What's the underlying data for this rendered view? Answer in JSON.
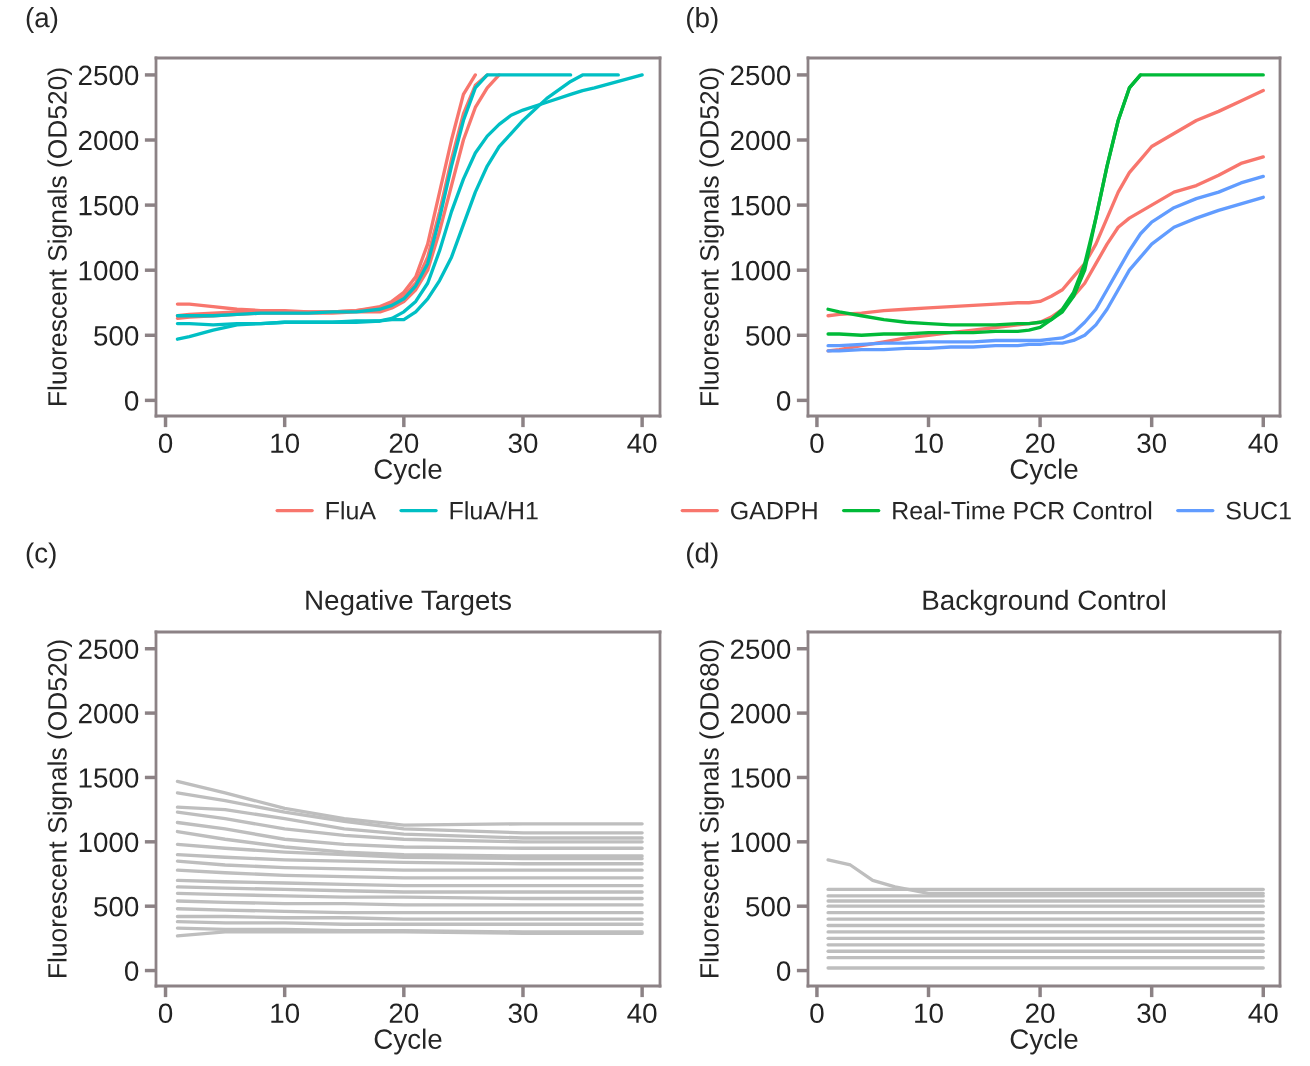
{
  "chart_data": [
    {
      "type": "line",
      "annotations": [
        "(a)"
      ],
      "xlabel": "Cycle",
      "ylabel": "Fluorescent Signals (OD520)",
      "xlim": [
        -0.8,
        41.5
      ],
      "ylim": [
        -120,
        2630
      ],
      "xticks": [
        0,
        10,
        20,
        30,
        40
      ],
      "yticks": [
        0,
        500,
        1000,
        1500,
        2000,
        2500
      ],
      "grid": false,
      "legend": "bottom",
      "x": [
        1,
        2,
        4,
        6,
        8,
        10,
        12,
        14,
        16,
        18,
        19,
        20,
        21,
        22,
        23,
        24,
        25,
        26,
        27,
        28,
        29,
        30,
        32,
        34,
        35,
        36,
        38,
        40
      ],
      "series": [
        {
          "name": "FluA",
          "color": "#f8766d",
          "values": [
            740,
            740,
            720,
            700,
            690,
            690,
            680,
            680,
            690,
            720,
            760,
            830,
            950,
            1200,
            1600,
            2000,
            2350,
            2500,
            null,
            null,
            null,
            null,
            null,
            null,
            null,
            null,
            null,
            null
          ]
        },
        {
          "color": "#f8766d",
          "values": [
            650,
            660,
            670,
            680,
            680,
            680,
            680,
            680,
            690,
            710,
            740,
            800,
            900,
            1100,
            1450,
            1850,
            2200,
            2420,
            2500,
            null,
            null,
            null,
            null,
            null,
            null,
            null,
            null,
            null
          ]
        },
        {
          "color": "#f8766d",
          "values": [
            630,
            640,
            650,
            660,
            670,
            670,
            670,
            670,
            680,
            680,
            710,
            760,
            850,
            1000,
            1300,
            1650,
            2000,
            2250,
            2400,
            2500,
            null,
            null,
            null,
            null,
            null,
            null,
            null,
            null
          ]
        },
        {
          "name": "FluA/H1",
          "color": "#00bfc4",
          "values": [
            650,
            650,
            650,
            660,
            670,
            670,
            670,
            680,
            680,
            700,
            730,
            780,
            880,
            1050,
            1400,
            1800,
            2150,
            2400,
            2500,
            2500,
            2500,
            2500,
            2500,
            2500,
            null,
            null,
            null,
            null
          ]
        },
        {
          "color": "#00bfc4",
          "values": [
            590,
            590,
            580,
            590,
            590,
            600,
            600,
            600,
            610,
            610,
            630,
            680,
            760,
            900,
            1150,
            1450,
            1700,
            1900,
            2030,
            2120,
            2190,
            2230,
            2290,
            2350,
            2380,
            2400,
            2450,
            2500
          ]
        },
        {
          "color": "#00bfc4",
          "values": [
            470,
            490,
            540,
            580,
            590,
            600,
            600,
            600,
            600,
            610,
            620,
            620,
            680,
            780,
            920,
            1100,
            1350,
            1600,
            1800,
            1950,
            2050,
            2150,
            2320,
            2450,
            2500,
            2500,
            2500,
            null
          ]
        }
      ]
    },
    {
      "type": "line",
      "annotations": [
        "(b)"
      ],
      "xlabel": "Cycle",
      "ylabel": "Fluorescent Signals (OD520)",
      "xlim": [
        -0.8,
        41.5
      ],
      "ylim": [
        -120,
        2630
      ],
      "xticks": [
        0,
        10,
        20,
        30,
        40
      ],
      "yticks": [
        0,
        500,
        1000,
        1500,
        2000,
        2500
      ],
      "grid": false,
      "legend": "bottom",
      "x": [
        1,
        2,
        4,
        6,
        8,
        10,
        12,
        14,
        16,
        18,
        19,
        20,
        21,
        22,
        23,
        24,
        25,
        26,
        27,
        28,
        29,
        30,
        32,
        34,
        36,
        38,
        40
      ],
      "series": [
        {
          "name": "GADPH",
          "color": "#f8766d",
          "values": [
            650,
            660,
            670,
            690,
            700,
            710,
            720,
            730,
            740,
            750,
            750,
            760,
            800,
            850,
            950,
            1050,
            1200,
            1400,
            1600,
            1750,
            1850,
            1950,
            2050,
            2150,
            2220,
            2300,
            2380
          ]
        },
        {
          "color": "#f8766d",
          "values": [
            380,
            390,
            420,
            450,
            480,
            500,
            520,
            540,
            560,
            580,
            590,
            600,
            640,
            700,
            800,
            900,
            1050,
            1200,
            1330,
            1400,
            1450,
            1500,
            1600,
            1650,
            1730,
            1820,
            1870
          ]
        },
        {
          "name": "Real-Time PCR Control",
          "color": "#00ba38",
          "values": [
            700,
            680,
            650,
            620,
            600,
            590,
            580,
            580,
            580,
            590,
            590,
            600,
            620,
            680,
            800,
            1000,
            1400,
            1800,
            2150,
            2400,
            2500,
            2500,
            2500,
            2500,
            2500,
            2500,
            2500
          ]
        },
        {
          "color": "#00ba38",
          "values": [
            510,
            510,
            500,
            510,
            510,
            520,
            520,
            520,
            530,
            530,
            540,
            560,
            620,
            700,
            830,
            1050,
            1400,
            1800,
            2150,
            2400,
            2500,
            null,
            null,
            null,
            null,
            null,
            null
          ]
        },
        {
          "name": "SUC1",
          "color": "#619cff",
          "values": [
            420,
            420,
            430,
            440,
            440,
            450,
            450,
            450,
            460,
            460,
            460,
            460,
            470,
            480,
            520,
            600,
            700,
            850,
            1000,
            1150,
            1280,
            1370,
            1480,
            1550,
            1600,
            1670,
            1720
          ]
        },
        {
          "color": "#619cff",
          "values": [
            380,
            380,
            390,
            390,
            400,
            400,
            410,
            410,
            420,
            420,
            430,
            430,
            440,
            440,
            460,
            500,
            580,
            700,
            850,
            1000,
            1100,
            1200,
            1330,
            1400,
            1460,
            1510,
            1560
          ]
        }
      ]
    },
    {
      "type": "line",
      "title": "Negative Targets",
      "annotations": [
        "(c)"
      ],
      "xlabel": "Cycle",
      "ylabel": "Fluorescent Signals (OD520)",
      "xlim": [
        -0.8,
        41.5
      ],
      "ylim": [
        -120,
        2630
      ],
      "xticks": [
        0,
        10,
        20,
        30,
        40
      ],
      "yticks": [
        0,
        500,
        1000,
        1500,
        2000,
        2500
      ],
      "grid": false,
      "x": [
        1,
        5,
        10,
        15,
        20,
        30,
        40
      ],
      "series": [
        {
          "color": "#bebebe",
          "values": [
            1470,
            1380,
            1260,
            1180,
            1130,
            1140,
            1140
          ]
        },
        {
          "color": "#bebebe",
          "values": [
            1380,
            1320,
            1230,
            1160,
            1100,
            1070,
            1070
          ]
        },
        {
          "color": "#bebebe",
          "values": [
            1270,
            1250,
            1180,
            1100,
            1060,
            1030,
            1030
          ]
        },
        {
          "color": "#bebebe",
          "values": [
            1230,
            1180,
            1100,
            1050,
            1020,
            1000,
            1000
          ]
        },
        {
          "color": "#bebebe",
          "values": [
            1150,
            1100,
            1020,
            980,
            960,
            950,
            950
          ]
        },
        {
          "color": "#bebebe",
          "values": [
            1080,
            1020,
            960,
            920,
            900,
            890,
            890
          ]
        },
        {
          "color": "#bebebe",
          "values": [
            980,
            950,
            920,
            900,
            880,
            870,
            870
          ]
        },
        {
          "color": "#bebebe",
          "values": [
            900,
            880,
            860,
            850,
            840,
            830,
            830
          ]
        },
        {
          "color": "#bebebe",
          "values": [
            850,
            820,
            800,
            790,
            780,
            780,
            780
          ]
        },
        {
          "color": "#bebebe",
          "values": [
            780,
            760,
            740,
            730,
            720,
            720,
            720
          ]
        },
        {
          "color": "#bebebe",
          "values": [
            700,
            690,
            680,
            670,
            660,
            660,
            660
          ]
        },
        {
          "color": "#bebebe",
          "values": [
            650,
            640,
            630,
            620,
            610,
            610,
            610
          ]
        },
        {
          "color": "#bebebe",
          "values": [
            600,
            590,
            580,
            570,
            570,
            560,
            560
          ]
        },
        {
          "color": "#bebebe",
          "values": [
            540,
            530,
            520,
            520,
            510,
            510,
            510
          ]
        },
        {
          "color": "#bebebe",
          "values": [
            480,
            470,
            460,
            450,
            450,
            450,
            450
          ]
        },
        {
          "color": "#bebebe",
          "values": [
            420,
            420,
            410,
            410,
            400,
            400,
            400
          ]
        },
        {
          "color": "#bebebe",
          "values": [
            380,
            370,
            370,
            360,
            360,
            360,
            360
          ]
        },
        {
          "color": "#bebebe",
          "values": [
            330,
            320,
            320,
            310,
            310,
            300,
            300
          ]
        },
        {
          "color": "#bebebe",
          "values": [
            270,
            300,
            300,
            300,
            300,
            290,
            290
          ]
        }
      ]
    },
    {
      "type": "line",
      "title": "Background Control",
      "annotations": [
        "(d)"
      ],
      "xlabel": "Cycle",
      "ylabel": "Fluorescent Signals (OD680)",
      "xlim": [
        -0.8,
        41.5
      ],
      "ylim": [
        -120,
        2630
      ],
      "xticks": [
        0,
        10,
        20,
        30,
        40
      ],
      "yticks": [
        0,
        500,
        1000,
        1500,
        2000,
        2500
      ],
      "grid": false,
      "x": [
        1,
        3,
        5,
        7,
        10,
        20,
        30,
        40
      ],
      "series": [
        {
          "color": "#bebebe",
          "values": [
            860,
            820,
            700,
            650,
            600,
            600,
            600,
            600
          ]
        },
        {
          "color": "#bebebe",
          "values": [
            630,
            630,
            630,
            630,
            630,
            630,
            630,
            630
          ]
        },
        {
          "color": "#bebebe",
          "values": [
            580,
            580,
            580,
            580,
            580,
            580,
            580,
            580
          ]
        },
        {
          "color": "#bebebe",
          "values": [
            540,
            540,
            540,
            540,
            540,
            540,
            540,
            540
          ]
        },
        {
          "color": "#bebebe",
          "values": [
            500,
            500,
            500,
            500,
            500,
            500,
            500,
            500
          ]
        },
        {
          "color": "#bebebe",
          "values": [
            450,
            450,
            450,
            450,
            450,
            450,
            450,
            450
          ]
        },
        {
          "color": "#bebebe",
          "values": [
            400,
            400,
            400,
            400,
            400,
            400,
            400,
            400
          ]
        },
        {
          "color": "#bebebe",
          "values": [
            350,
            350,
            350,
            350,
            350,
            350,
            350,
            350
          ]
        },
        {
          "color": "#bebebe",
          "values": [
            300,
            300,
            300,
            300,
            300,
            300,
            300,
            300
          ]
        },
        {
          "color": "#bebebe",
          "values": [
            250,
            250,
            250,
            250,
            250,
            250,
            250,
            250
          ]
        },
        {
          "color": "#bebebe",
          "values": [
            200,
            200,
            200,
            200,
            200,
            200,
            200,
            200
          ]
        },
        {
          "color": "#bebebe",
          "values": [
            150,
            150,
            150,
            150,
            150,
            150,
            150,
            150
          ]
        },
        {
          "color": "#bebebe",
          "values": [
            100,
            100,
            100,
            100,
            100,
            100,
            100,
            100
          ]
        },
        {
          "color": "#bebebe",
          "values": [
            20,
            20,
            20,
            20,
            20,
            20,
            20,
            20
          ]
        }
      ]
    }
  ]
}
